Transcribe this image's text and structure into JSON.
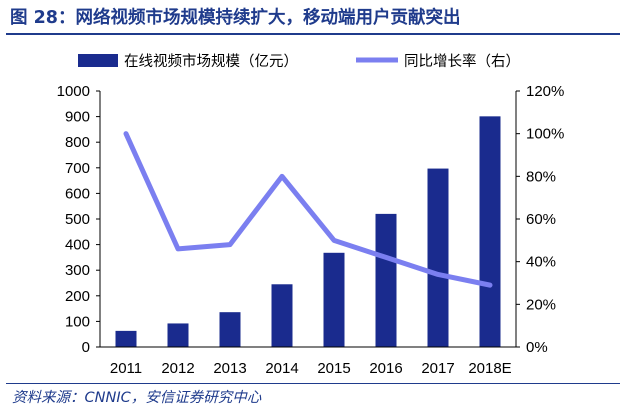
{
  "title": "图 28：网络视频市场规模持续扩大，移动端用户贡献突出",
  "source": "资料来源：CNNIC，安信证券研究中心",
  "colors": {
    "bar": "#1a2b8e",
    "line": "#7b7ff0",
    "heading": "#1f3b8c"
  },
  "chart_data": {
    "type": "bar",
    "categories": [
      "2011",
      "2012",
      "2013",
      "2014",
      "2015",
      "2016",
      "2017",
      "2018E"
    ],
    "series": [
      {
        "name": "在线视频市场规模（亿元）",
        "type": "bar",
        "axis": "left",
        "values": [
          63,
          92,
          136,
          245,
          368,
          520,
          697,
          901
        ]
      },
      {
        "name": "同比增长率（右）",
        "type": "line",
        "axis": "right",
        "values": [
          1.0,
          0.46,
          0.48,
          0.8,
          0.5,
          0.42,
          0.34,
          0.29
        ]
      }
    ],
    "ylim": [
      0,
      1000
    ],
    "yticks": [
      "0",
      "100",
      "200",
      "300",
      "400",
      "500",
      "600",
      "700",
      "800",
      "900",
      "1000"
    ],
    "y2lim": [
      0,
      1.2
    ],
    "y2ticks": [
      "0%",
      "20%",
      "40%",
      "60%",
      "80%",
      "100%",
      "120%"
    ],
    "legend": "top",
    "grid": false
  }
}
